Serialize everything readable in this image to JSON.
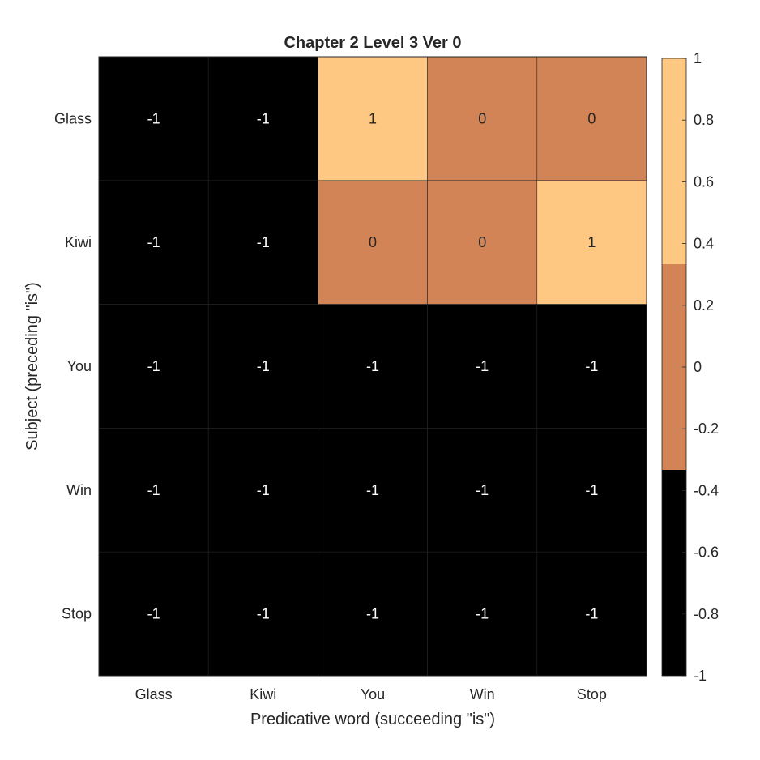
{
  "chart_data": {
    "type": "heatmap",
    "title": "Chapter 2 Level 3 Ver 0",
    "xlabel": "Predicative word (succeeding \"is\")",
    "ylabel": "Subject (preceding \"is\")",
    "x_categories": [
      "Glass",
      "Kiwi",
      "You",
      "Win",
      "Stop"
    ],
    "y_categories": [
      "Glass",
      "Kiwi",
      "You",
      "Win",
      "Stop"
    ],
    "values": [
      [
        -1,
        -1,
        1,
        0,
        0
      ],
      [
        -1,
        -1,
        0,
        0,
        1
      ],
      [
        -1,
        -1,
        -1,
        -1,
        -1
      ],
      [
        -1,
        -1,
        -1,
        -1,
        -1
      ],
      [
        -1,
        -1,
        -1,
        -1,
        -1
      ]
    ],
    "colorbar": {
      "range": [
        -1,
        1
      ],
      "ticks": [
        1,
        0.8,
        0.6,
        0.4,
        0.2,
        0,
        -0.2,
        -0.4,
        -0.6,
        -0.8,
        -1
      ],
      "tick_labels": [
        "1",
        "0.8",
        "0.6",
        "0.4",
        "0.2",
        "0",
        "-0.2",
        "-0.4",
        "-0.6",
        "-0.8",
        "-1"
      ],
      "colormap": [
        {
          "from": -1,
          "to": -0.3333,
          "color": "#000000"
        },
        {
          "from": -0.3333,
          "to": 0.3333,
          "color": "#d38456"
        },
        {
          "from": 0.3333,
          "to": 1,
          "color": "#fec882"
        }
      ]
    },
    "cell_text_color_dark": "#ffffff",
    "cell_text_color_light": "#262626",
    "grid": true,
    "legend": "colorbar-right"
  }
}
